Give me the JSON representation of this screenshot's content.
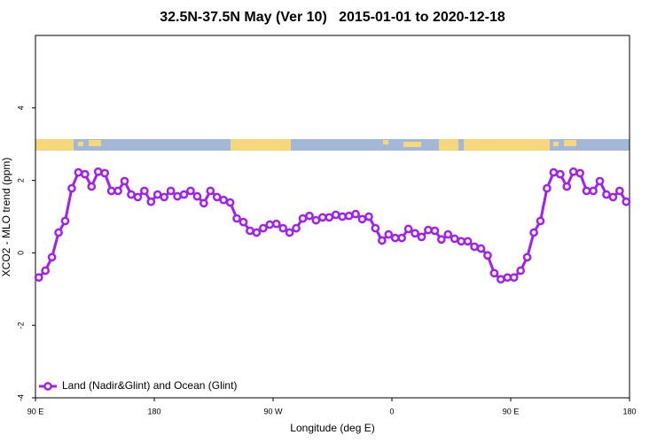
{
  "chart_data": {
    "type": "line",
    "title": "32.5N-37.5N May (Ver 10)   2015-01-01 to 2020-12-18",
    "x_label": "Longitude (deg E)",
    "y_label": "XCO2 - MLO trend (ppm)",
    "x": [
      92.5,
      97.5,
      102.5,
      107.5,
      112.5,
      117.5,
      122.5,
      127.5,
      132.5,
      137.5,
      142.5,
      147.5,
      152.5,
      157.5,
      162.5,
      167.5,
      172.5,
      177.5,
      182.5,
      187.5,
      192.5,
      197.5,
      202.5,
      207.5,
      212.5,
      217.5,
      222.5,
      227.5,
      232.5,
      237.5,
      242.5,
      247.5,
      252.5,
      257.5,
      262.5,
      267.5,
      272.5,
      277.5,
      282.5,
      287.5,
      292.5,
      297.5,
      302.5,
      307.5,
      312.5,
      317.5,
      322.5,
      327.5,
      332.5,
      337.5,
      342.5,
      347.5,
      352.5,
      357.5,
      362.5,
      367.5,
      372.5,
      377.5,
      382.5,
      387.5,
      392.5,
      397.5,
      402.5,
      407.5,
      412.5,
      417.5,
      422.5,
      427.5,
      432.5,
      437.5,
      442.5,
      447.5,
      452.5,
      457.5,
      462.5,
      467.5,
      472.5,
      477.5,
      482.5,
      487.5,
      492.5,
      497.5,
      502.5,
      507.5,
      512.5,
      517.5,
      522.5,
      527.5,
      532.5,
      537.5
    ],
    "series": [
      {
        "name": "Land (Nadir&Glint) and Ocean (Glint)",
        "color": "#a020f0",
        "values": [
          -0.68,
          -0.49,
          -0.12,
          0.56,
          0.88,
          1.78,
          2.22,
          2.17,
          1.83,
          2.24,
          2.2,
          1.71,
          1.71,
          1.98,
          1.61,
          1.54,
          1.71,
          1.41,
          1.61,
          1.54,
          1.71,
          1.56,
          1.61,
          1.71,
          1.56,
          1.37,
          1.71,
          1.54,
          1.46,
          1.39,
          0.95,
          0.85,
          0.61,
          0.56,
          0.68,
          0.78,
          0.8,
          0.68,
          0.56,
          0.68,
          0.95,
          1.02,
          0.9,
          0.98,
          0.98,
          1.05,
          1.0,
          1.02,
          1.07,
          0.93,
          1.0,
          0.68,
          0.34,
          0.51,
          0.41,
          0.41,
          0.66,
          0.54,
          0.44,
          0.63,
          0.61,
          0.37,
          0.51,
          0.39,
          0.32,
          0.32,
          0.17,
          0.12,
          -0.07,
          -0.56,
          -0.73,
          -0.68,
          -0.68,
          -0.49,
          -0.12,
          0.56,
          0.88,
          1.78,
          2.22,
          2.17,
          1.83,
          2.24,
          2.2,
          1.71,
          1.71,
          1.98,
          1.61,
          1.54,
          1.71,
          1.41
        ]
      }
    ],
    "xlim": [
      90,
      540
    ],
    "xticks": [
      {
        "value": 90,
        "label": "90 E"
      },
      180,
      {
        "value": 270,
        "label": "90 W"
      },
      {
        "value": 360,
        "label": "0"
      },
      {
        "value": 450,
        "label": "90 E"
      },
      {
        "value": 540,
        "label": "180"
      }
    ],
    "ylim": [
      -4,
      6
    ],
    "yticks": [
      -4,
      -2,
      0,
      2,
      4
    ],
    "legend": "bottom-left"
  }
}
